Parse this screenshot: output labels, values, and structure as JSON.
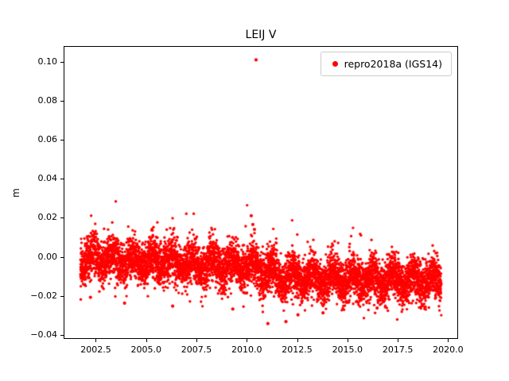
{
  "figure": {
    "background_color": "#ffffff"
  },
  "chart_data": {
    "type": "scatter",
    "title": "LEIJ V",
    "xlabel": "",
    "ylabel": "m",
    "series": [
      {
        "name": "repro2018a (IGS14)",
        "marker_color": "#ff0000",
        "marker_style": "dot"
      }
    ],
    "legend_position": "upper right",
    "grid": false,
    "xlim": [
      2000.9,
      2020.5
    ],
    "ylim": [
      -0.042,
      0.108
    ],
    "xticks": [
      {
        "value": 2002.5,
        "label": "2002.5"
      },
      {
        "value": 2005.0,
        "label": "2005.0"
      },
      {
        "value": 2007.5,
        "label": "2007.5"
      },
      {
        "value": 2010.0,
        "label": "2010.0"
      },
      {
        "value": 2012.5,
        "label": "2012.5"
      },
      {
        "value": 2015.0,
        "label": "2015.0"
      },
      {
        "value": 2017.5,
        "label": "2017.5"
      },
      {
        "value": 2020.0,
        "label": "2020.0"
      }
    ],
    "yticks": [
      {
        "value": 0.1,
        "label": "0.10"
      },
      {
        "value": 0.08,
        "label": "0.08"
      },
      {
        "value": 0.06,
        "label": "0.06"
      },
      {
        "value": 0.04,
        "label": "0.04"
      },
      {
        "value": 0.02,
        "label": "0.02"
      },
      {
        "value": 0.0,
        "label": "0.00"
      },
      {
        "value": -0.02,
        "label": "−0.02"
      },
      {
        "value": -0.04,
        "label": "−0.04"
      }
    ],
    "x_start": 2001.7,
    "x_end": 2019.7,
    "n_points": 6500,
    "trend_anchors": [
      [
        2001.7,
        -0.001
      ],
      [
        2004.0,
        -0.002
      ],
      [
        2006.0,
        -0.003
      ],
      [
        2008.0,
        -0.004
      ],
      [
        2010.0,
        -0.0045
      ],
      [
        2010.8,
        -0.008
      ],
      [
        2012.0,
        -0.0105
      ],
      [
        2014.0,
        -0.011
      ],
      [
        2016.0,
        -0.0115
      ],
      [
        2018.0,
        -0.012
      ],
      [
        2019.7,
        -0.0125
      ]
    ],
    "seasonal_amplitude": 0.0035,
    "noise_std": 0.0055,
    "heavy_tail_fraction": 0.03,
    "heavy_tail_scale": 1.9,
    "random_seed": 42,
    "outliers": [
      [
        2010.46,
        0.1013
      ],
      [
        2010.22,
        0.021
      ],
      [
        2010.3,
        0.0165
      ],
      [
        2010.38,
        0.014
      ],
      [
        2011.05,
        -0.0345
      ],
      [
        2011.95,
        -0.0335
      ],
      [
        2012.55,
        -0.03
      ],
      [
        2009.3,
        -0.027
      ],
      [
        2013.8,
        -0.029
      ],
      [
        2016.5,
        -0.0265
      ],
      [
        2018.9,
        -0.026
      ],
      [
        2006.3,
        -0.0255
      ],
      [
        2003.9,
        -0.024
      ],
      [
        2002.2,
        -0.021
      ]
    ]
  }
}
